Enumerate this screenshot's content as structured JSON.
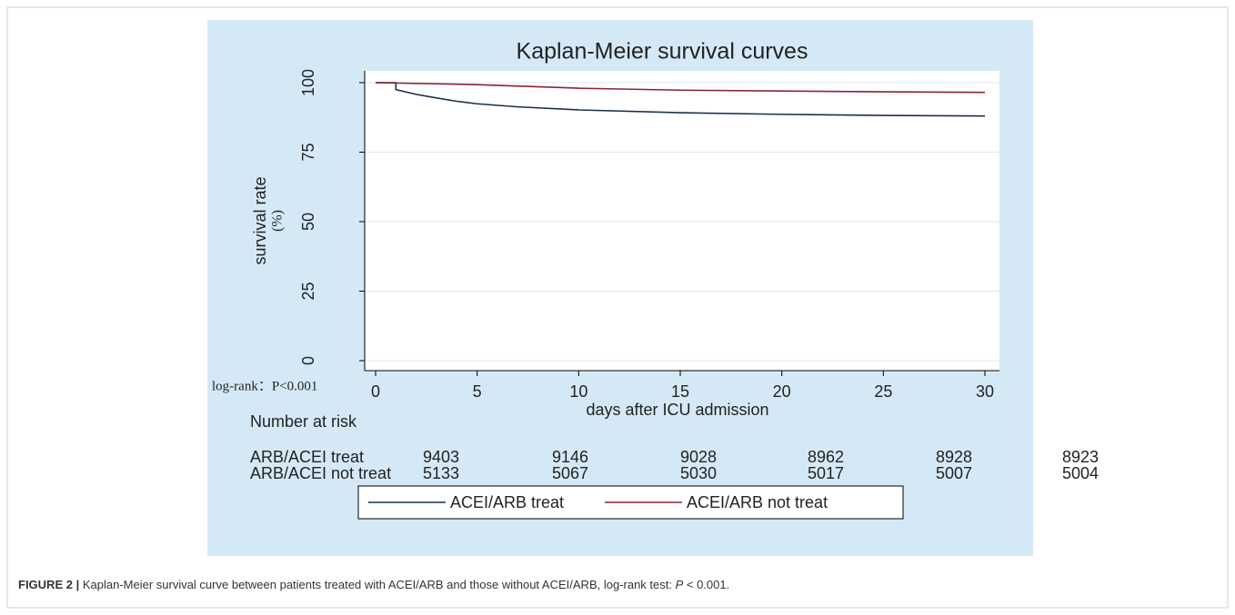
{
  "chart_data": {
    "type": "line",
    "title": "Kaplan-Meier survival curves",
    "ylabel": "survival rate",
    "ylabel_unit": "(%)",
    "xlabel": "days after ICU admission",
    "annotation": "log-rank：P<0.001",
    "xlim": [
      0,
      30
    ],
    "xticks": [
      0,
      5,
      10,
      15,
      20,
      25,
      30
    ],
    "ylim": [
      0,
      100
    ],
    "yticks": [
      0,
      25,
      50,
      75,
      100
    ],
    "grid": true,
    "series": [
      {
        "name": "ACEI/ARB treat",
        "color": "#1c2f4f",
        "x": [
          0,
          1,
          1,
          2,
          3,
          4,
          5,
          7,
          10,
          15,
          20,
          25,
          30
        ],
        "values": [
          100,
          100,
          97.5,
          95.8,
          94.5,
          93.3,
          92.4,
          91.3,
          90.2,
          89.2,
          88.6,
          88.2,
          88
        ]
      },
      {
        "name": "ACEI/ARB not treat",
        "color": "#8b2331",
        "x": [
          0,
          5,
          10,
          15,
          20,
          25,
          30
        ],
        "values": [
          100,
          99.3,
          98,
          97.3,
          97,
          96.7,
          96.5
        ]
      }
    ],
    "risk_table": {
      "title": "Number at risk",
      "rows": [
        {
          "label": "ARB/ACEI treat",
          "values": [
            "9403",
            "9146",
            "9028",
            "8962",
            "8928",
            "8923"
          ]
        },
        {
          "label": "ARB/ACEI not treat",
          "values": [
            "5133",
            "5067",
            "5030",
            "5017",
            "5007",
            "5004"
          ]
        }
      ]
    }
  },
  "caption": {
    "label": "FIGURE 2 |",
    "text_before": "Kaplan-Meier survival curve between patients treated with ACEI/ARB and those without ACEI/ARB, log-rank test: ",
    "italic": "P",
    "text_after": " < 0.001."
  }
}
